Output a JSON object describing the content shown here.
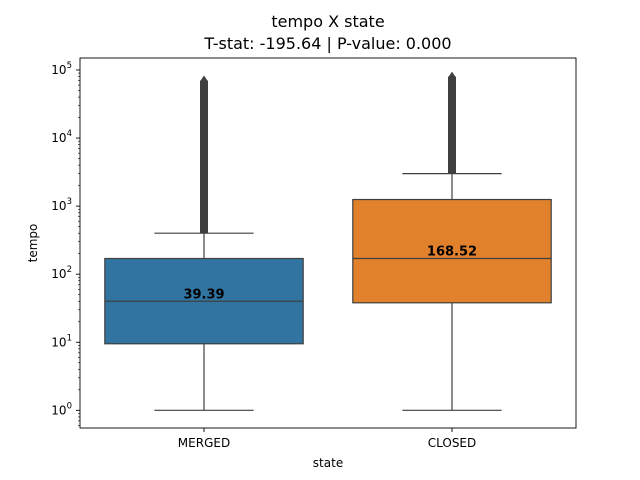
{
  "chart_data": {
    "type": "box",
    "title": "tempo X state",
    "subtitle": "T-stat: -195.64 | P-value: 0.000",
    "xlabel": "state",
    "ylabel": "tempo",
    "yscale": "log",
    "ylim": [
      0.55,
      150000
    ],
    "yticks": [
      {
        "value": 1,
        "base": "10",
        "exp": "0"
      },
      {
        "value": 10,
        "base": "10",
        "exp": "1"
      },
      {
        "value": 100,
        "base": "10",
        "exp": "2"
      },
      {
        "value": 1000,
        "base": "10",
        "exp": "3"
      },
      {
        "value": 10000,
        "base": "10",
        "exp": "4"
      },
      {
        "value": 100000,
        "base": "10",
        "exp": "5"
      }
    ],
    "grid": false,
    "categories": [
      "MERGED",
      "CLOSED"
    ],
    "boxes": [
      {
        "category": "MERGED",
        "color": "#3274a1",
        "whisker_low": 1,
        "q1": 9.5,
        "median": 40,
        "q3": 170,
        "whisker_high": 400,
        "outliers_from": 400,
        "outliers_to": 70000,
        "mean_label": "39.39"
      },
      {
        "category": "CLOSED",
        "color": "#e1812c",
        "whisker_low": 1,
        "q1": 38,
        "median": 170,
        "q3": 1250,
        "whisker_high": 3000,
        "outliers_from": 3000,
        "outliers_to": 80000,
        "mean_label": "168.52"
      }
    ]
  }
}
